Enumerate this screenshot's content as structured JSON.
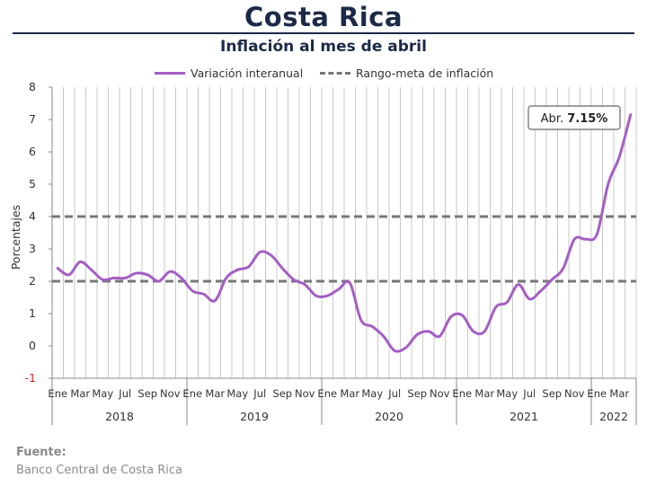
{
  "title": "Costa Rica",
  "subtitle": "Inflación al mes de abril",
  "legend": {
    "series_label": "Variación interanual",
    "band_label": "Rango-meta de inflación"
  },
  "colors": {
    "series": "#a45ec4",
    "band": "#777777",
    "title": "#1b2a47",
    "grid": "#c8c8c8"
  },
  "source": {
    "label": "Fuente:",
    "text": "Banco Central de Costa Rica"
  },
  "chart_data": {
    "type": "line",
    "ylabel": "Porcentajes",
    "ylim": [
      -1,
      8
    ],
    "yticks": [
      -1,
      0,
      1,
      2,
      3,
      4,
      5,
      6,
      7,
      8
    ],
    "grid": "vertical per month, no horizontal",
    "legend_position": "top",
    "month_labels": [
      "Ene",
      "Mar",
      "May",
      "Jul",
      "Sep",
      "Nov"
    ],
    "month_labels_2022": [
      "Ene",
      "Mar"
    ],
    "years": [
      "2018",
      "2019",
      "2020",
      "2021",
      "2022"
    ],
    "x": [
      "2018-01",
      "2018-02",
      "2018-03",
      "2018-04",
      "2018-05",
      "2018-06",
      "2018-07",
      "2018-08",
      "2018-09",
      "2018-10",
      "2018-11",
      "2018-12",
      "2019-01",
      "2019-02",
      "2019-03",
      "2019-04",
      "2019-05",
      "2019-06",
      "2019-07",
      "2019-08",
      "2019-09",
      "2019-10",
      "2019-11",
      "2019-12",
      "2020-01",
      "2020-02",
      "2020-03",
      "2020-04",
      "2020-05",
      "2020-06",
      "2020-07",
      "2020-08",
      "2020-09",
      "2020-10",
      "2020-11",
      "2020-12",
      "2021-01",
      "2021-02",
      "2021-03",
      "2021-04",
      "2021-05",
      "2021-06",
      "2021-07",
      "2021-08",
      "2021-09",
      "2021-10",
      "2021-11",
      "2021-12",
      "2022-01",
      "2022-02",
      "2022-03",
      "2022-04"
    ],
    "series": [
      {
        "name": "Variación interanual",
        "values": [
          2.4,
          2.2,
          2.6,
          2.35,
          2.05,
          2.1,
          2.1,
          2.25,
          2.2,
          2.0,
          2.3,
          2.1,
          1.7,
          1.6,
          1.4,
          2.1,
          2.35,
          2.45,
          2.9,
          2.8,
          2.4,
          2.05,
          1.9,
          1.55,
          1.55,
          1.75,
          1.95,
          0.8,
          0.6,
          0.3,
          -0.15,
          -0.05,
          0.35,
          0.45,
          0.3,
          0.9,
          0.95,
          0.45,
          0.45,
          1.2,
          1.35,
          1.9,
          1.45,
          1.7,
          2.05,
          2.4,
          3.3,
          3.3,
          3.45,
          5.0,
          5.85,
          7.15
        ]
      }
    ],
    "target_band": [
      2,
      4
    ],
    "annotation": {
      "label": "Abr.",
      "value": "7.15%",
      "at": "2022-04"
    }
  }
}
